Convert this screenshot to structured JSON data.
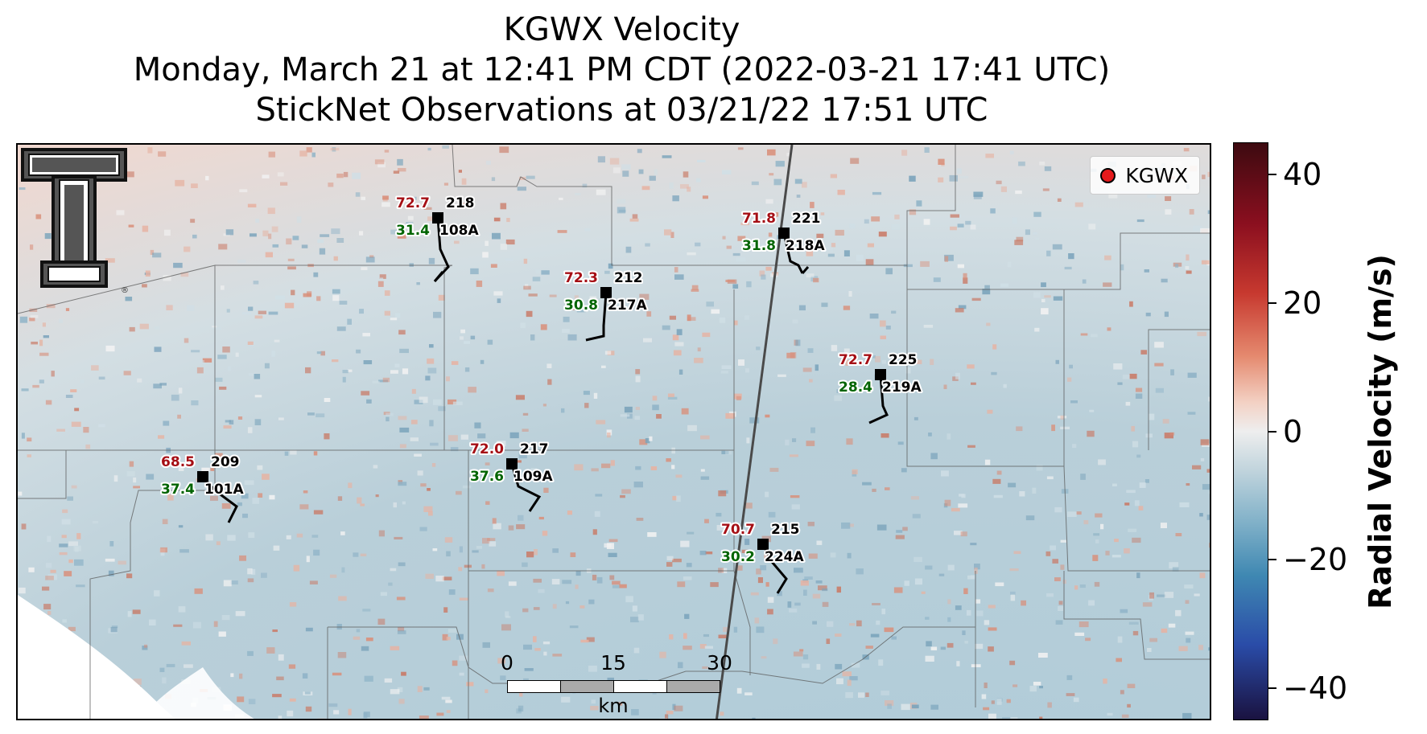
{
  "title": {
    "line1": "KGWX Velocity",
    "line2": "Monday, March 21 at 12:41 PM CDT (2022-03-21 17:41 UTC)",
    "line3": "StickNet Observations at 03/21/22 17:51 UTC"
  },
  "legend": {
    "label": "KGWX",
    "marker_color": "#e41a1c"
  },
  "logo": {
    "icon": "texas-tech-logo-icon",
    "text": "T"
  },
  "scale_bar": {
    "labels": [
      "0",
      "15",
      "30"
    ],
    "unit": "km"
  },
  "colorbar": {
    "title": "Radial Velocity (m/s)",
    "ticks": [
      40,
      20,
      0,
      -20,
      -40
    ],
    "tick_labels": [
      "40",
      "20",
      "0",
      "−20",
      "−40"
    ],
    "range": [
      -45,
      45
    ],
    "colormap": "red-white-blue"
  },
  "stations": [
    {
      "id": "218",
      "sub_id": "108A",
      "temperature": "72.7",
      "dewpoint": "31.4"
    },
    {
      "id": "221",
      "sub_id": "218A",
      "temperature": "71.8",
      "dewpoint": "31.8"
    },
    {
      "id": "212",
      "sub_id": "217A",
      "temperature": "72.3",
      "dewpoint": "30.8"
    },
    {
      "id": "225",
      "sub_id": "219A",
      "temperature": "72.7",
      "dewpoint": "28.4"
    },
    {
      "id": "217",
      "sub_id": "109A",
      "temperature": "72.0",
      "dewpoint": "37.6"
    },
    {
      "id": "209",
      "sub_id": "101A",
      "temperature": "68.5",
      "dewpoint": "37.4"
    },
    {
      "id": "215",
      "sub_id": "224A",
      "temperature": "70.7",
      "dewpoint": "30.2"
    }
  ],
  "colors": {
    "temperature": "#a50f15",
    "dewpoint": "#006400",
    "background_velocity": "#b7ccd6"
  }
}
